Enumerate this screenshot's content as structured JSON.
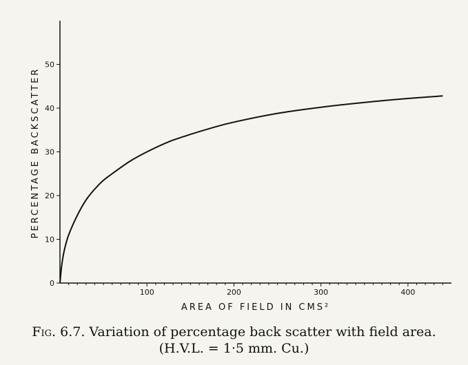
{
  "chart_data": {
    "type": "line",
    "xlabel": "AREA OF FIELD IN CMS²",
    "ylabel": "PERCENTAGE BACKSCATTER",
    "xlim": [
      0,
      450
    ],
    "ylim": [
      0,
      60
    ],
    "xticks": [
      100,
      200,
      300,
      400
    ],
    "yticks": [
      0,
      10,
      20,
      30,
      40,
      50
    ],
    "grid": false,
    "series": [
      {
        "x": [
          0,
          2,
          5,
          10,
          20,
          30,
          40,
          50,
          60,
          80,
          100,
          125,
          150,
          175,
          200,
          250,
          300,
          350,
          400,
          440
        ],
        "y": [
          0,
          4,
          7.5,
          11,
          15.5,
          19,
          21.5,
          23.5,
          25,
          27.8,
          30,
          32.3,
          34,
          35.5,
          36.8,
          38.8,
          40.2,
          41.3,
          42.2,
          42.8
        ]
      }
    ]
  },
  "caption": {
    "prefix": "Fig.",
    "line1": "6.7. Variation of percentage back scatter with field area.",
    "line2": "(H.V.L. = 1·5 mm. Cu.)"
  }
}
